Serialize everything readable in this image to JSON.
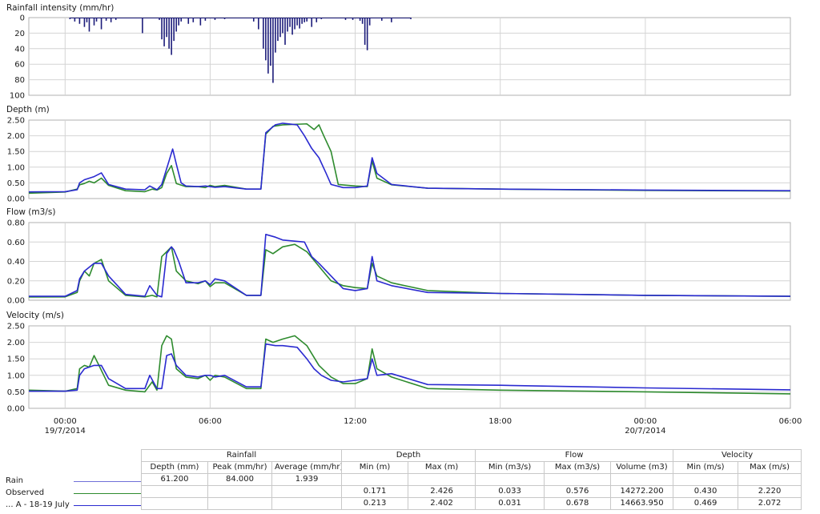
{
  "chart_data": [
    {
      "type": "bar",
      "title": "Rainfall intensity (mm/hr)",
      "ylim": [
        0,
        100
      ],
      "y_ticks": [
        "0",
        "20",
        "40",
        "60",
        "80",
        "100"
      ],
      "y_inverted": true,
      "x_unit": "hours since 19/7/2014 00:00",
      "xlim": [
        -3,
        30
      ],
      "series": [
        {
          "name": "Rain",
          "x": [
            0.2,
            0.4,
            0.6,
            0.8,
            0.9,
            1.0,
            1.2,
            1.3,
            1.5,
            1.7,
            1.9,
            2.1,
            3.2,
            3.9,
            4.0,
            4.1,
            4.2,
            4.3,
            4.4,
            4.5,
            4.6,
            4.7,
            4.8,
            5.1,
            5.3,
            5.6,
            5.8,
            6.2,
            6.6,
            7.8,
            8.0,
            8.2,
            8.3,
            8.4,
            8.5,
            8.6,
            8.7,
            8.8,
            8.9,
            9.0,
            9.1,
            9.2,
            9.3,
            9.4,
            9.5,
            9.6,
            9.7,
            9.8,
            9.9,
            10.0,
            10.2,
            10.4,
            10.6,
            11.6,
            11.9,
            12.2,
            12.3,
            12.4,
            12.5,
            12.6,
            13.1,
            13.5,
            14.3
          ],
          "values": [
            2,
            5,
            8,
            12,
            6,
            18,
            10,
            5,
            15,
            4,
            6,
            3,
            20,
            3,
            28,
            37,
            25,
            40,
            48,
            30,
            18,
            10,
            5,
            8,
            6,
            10,
            4,
            3,
            2,
            5,
            15,
            40,
            55,
            72,
            62,
            84,
            45,
            30,
            25,
            20,
            35,
            18,
            12,
            22,
            15,
            10,
            14,
            8,
            6,
            5,
            12,
            6,
            2,
            3,
            3,
            4,
            8,
            35,
            42,
            10,
            4,
            6,
            2
          ]
        }
      ]
    },
    {
      "type": "line",
      "title": "Depth (m)",
      "ylim": [
        0,
        2.5
      ],
      "y_ticks": [
        "0.00",
        "0.50",
        "1.00",
        "1.50",
        "2.00",
        "2.50"
      ],
      "x_unit": "hours since 19/7/2014 00:00",
      "xlim": [
        -1.5,
        30
      ],
      "series": [
        {
          "name": "Observed",
          "color": "#2e8b2e",
          "x": [
            -1.5,
            0.0,
            0.5,
            0.6,
            0.8,
            1.0,
            1.2,
            1.5,
            1.8,
            2.5,
            3.3,
            3.6,
            3.8,
            4.0,
            4.2,
            4.4,
            4.6,
            5.0,
            5.5,
            5.8,
            6.0,
            6.2,
            6.6,
            7.5,
            8.1,
            8.3,
            8.6,
            9.0,
            10.0,
            10.3,
            10.5,
            10.7,
            11.0,
            11.3,
            12.0,
            12.5,
            12.7,
            12.9,
            13.5,
            15.0,
            18.0,
            24.0,
            30.0
          ],
          "values": [
            0.171,
            0.21,
            0.3,
            0.44,
            0.48,
            0.55,
            0.5,
            0.65,
            0.42,
            0.25,
            0.22,
            0.3,
            0.27,
            0.35,
            0.8,
            1.05,
            0.48,
            0.38,
            0.38,
            0.35,
            0.42,
            0.38,
            0.42,
            0.3,
            0.3,
            2.05,
            2.3,
            2.35,
            2.38,
            2.2,
            2.35,
            2.0,
            1.5,
            0.45,
            0.4,
            0.38,
            1.2,
            0.65,
            0.44,
            0.33,
            0.3,
            0.26,
            0.24
          ]
        },
        {
          "name": "... A - 18-19 July",
          "color": "#2a2ad0",
          "x": [
            -1.5,
            0.0,
            0.5,
            0.6,
            0.8,
            1.2,
            1.5,
            1.8,
            2.5,
            3.3,
            3.5,
            3.8,
            4.0,
            4.3,
            4.45,
            4.6,
            4.8,
            5.0,
            5.5,
            5.8,
            6.0,
            6.2,
            6.6,
            7.5,
            8.1,
            8.3,
            8.7,
            9.0,
            9.6,
            9.9,
            10.2,
            10.5,
            10.8,
            11.0,
            11.5,
            12.0,
            12.5,
            12.7,
            12.9,
            13.5,
            15.0,
            18.0,
            24.0,
            30.0
          ],
          "values": [
            0.213,
            0.22,
            0.28,
            0.5,
            0.6,
            0.7,
            0.82,
            0.45,
            0.3,
            0.28,
            0.4,
            0.28,
            0.45,
            1.2,
            1.58,
            1.1,
            0.5,
            0.4,
            0.38,
            0.4,
            0.38,
            0.36,
            0.38,
            0.3,
            0.3,
            2.1,
            2.35,
            2.4,
            2.35,
            2.0,
            1.6,
            1.3,
            0.8,
            0.45,
            0.35,
            0.35,
            0.4,
            1.3,
            0.8,
            0.45,
            0.33,
            0.3,
            0.27,
            0.25
          ]
        }
      ]
    },
    {
      "type": "line",
      "title": "Flow (m3/s)",
      "ylim": [
        0,
        0.8
      ],
      "y_ticks": [
        "0.00",
        "0.20",
        "0.40",
        "0.60",
        "0.80"
      ],
      "x_unit": "hours since 19/7/2014 00:00",
      "xlim": [
        -1.5,
        30
      ],
      "series": [
        {
          "name": "Observed",
          "color": "#2e8b2e",
          "x": [
            -1.5,
            0.0,
            0.5,
            0.6,
            0.8,
            1.0,
            1.2,
            1.5,
            1.8,
            2.5,
            3.3,
            3.6,
            3.8,
            4.0,
            4.2,
            4.4,
            4.6,
            5.0,
            5.5,
            5.8,
            6.0,
            6.2,
            6.6,
            7.5,
            8.1,
            8.3,
            8.6,
            9.0,
            9.5,
            10.0,
            10.5,
            11.0,
            11.5,
            12.0,
            12.5,
            12.7,
            12.9,
            13.5,
            15.0,
            18.0,
            24.0,
            30.0
          ],
          "values": [
            0.033,
            0.035,
            0.08,
            0.2,
            0.3,
            0.25,
            0.38,
            0.42,
            0.2,
            0.05,
            0.035,
            0.05,
            0.035,
            0.45,
            0.5,
            0.55,
            0.3,
            0.2,
            0.17,
            0.2,
            0.14,
            0.18,
            0.18,
            0.05,
            0.05,
            0.52,
            0.48,
            0.55,
            0.576,
            0.5,
            0.35,
            0.2,
            0.15,
            0.13,
            0.12,
            0.38,
            0.25,
            0.18,
            0.1,
            0.07,
            0.05,
            0.04
          ]
        },
        {
          "name": "... A - 18-19 July",
          "color": "#2a2ad0",
          "x": [
            -1.5,
            0.0,
            0.5,
            0.6,
            0.8,
            1.2,
            1.5,
            1.8,
            2.5,
            3.3,
            3.5,
            3.8,
            4.0,
            4.2,
            4.4,
            4.5,
            4.7,
            5.0,
            5.5,
            5.8,
            6.0,
            6.2,
            6.6,
            7.5,
            8.1,
            8.3,
            8.7,
            9.0,
            9.9,
            10.2,
            10.5,
            11.0,
            11.5,
            12.0,
            12.5,
            12.7,
            12.9,
            13.5,
            15.0,
            18.0,
            24.0,
            30.0
          ],
          "values": [
            0.04,
            0.04,
            0.1,
            0.22,
            0.3,
            0.38,
            0.38,
            0.25,
            0.06,
            0.04,
            0.15,
            0.05,
            0.035,
            0.48,
            0.55,
            0.52,
            0.4,
            0.18,
            0.18,
            0.2,
            0.16,
            0.22,
            0.2,
            0.05,
            0.05,
            0.678,
            0.65,
            0.62,
            0.6,
            0.45,
            0.38,
            0.25,
            0.12,
            0.1,
            0.12,
            0.45,
            0.2,
            0.15,
            0.08,
            0.07,
            0.05,
            0.04
          ]
        }
      ]
    },
    {
      "type": "line",
      "title": "Velocity (m/s)",
      "ylim": [
        0,
        2.5
      ],
      "y_ticks": [
        "0.00",
        "0.50",
        "1.00",
        "1.50",
        "2.00",
        "2.50"
      ],
      "x_unit": "hours since 19/7/2014 00:00",
      "xlim": [
        -1.5,
        30
      ],
      "x_ticks": [
        {
          "label": "00:00",
          "date": "19/7/2014",
          "x": 0
        },
        {
          "label": "06:00",
          "date": "",
          "x": 6
        },
        {
          "label": "12:00",
          "date": "",
          "x": 12
        },
        {
          "label": "18:00",
          "date": "",
          "x": 18
        },
        {
          "label": "00:00",
          "date": "20/7/2014",
          "x": 24
        },
        {
          "label": "06:00",
          "date": "",
          "x": 30
        }
      ],
      "series": [
        {
          "name": "Observed",
          "color": "#2e8b2e",
          "x": [
            -1.5,
            0.0,
            0.5,
            0.6,
            0.8,
            1.0,
            1.2,
            1.4,
            1.8,
            2.5,
            3.3,
            3.6,
            3.8,
            4.0,
            4.2,
            4.4,
            4.6,
            5.0,
            5.5,
            5.8,
            6.0,
            6.2,
            6.6,
            7.5,
            8.1,
            8.3,
            8.6,
            9.0,
            9.5,
            10.0,
            10.5,
            11.0,
            11.5,
            12.0,
            12.5,
            12.7,
            12.9,
            13.5,
            15.0,
            18.0,
            24.0,
            30.0
          ],
          "values": [
            0.55,
            0.52,
            0.6,
            1.2,
            1.3,
            1.25,
            1.6,
            1.3,
            0.7,
            0.55,
            0.5,
            0.8,
            0.55,
            1.9,
            2.2,
            2.1,
            1.2,
            0.95,
            0.9,
            1.0,
            0.85,
            1.0,
            0.95,
            0.6,
            0.6,
            2.1,
            2.0,
            2.1,
            2.2,
            1.9,
            1.3,
            0.95,
            0.75,
            0.75,
            0.9,
            1.8,
            1.2,
            0.95,
            0.6,
            0.55,
            0.5,
            0.44
          ]
        },
        {
          "name": "... A - 18-19 July",
          "color": "#2a2ad0",
          "x": [
            -1.5,
            0.0,
            0.5,
            0.6,
            0.8,
            1.2,
            1.5,
            1.8,
            2.5,
            3.3,
            3.5,
            3.8,
            4.0,
            4.2,
            4.4,
            4.6,
            5.0,
            5.5,
            5.8,
            6.0,
            6.2,
            6.6,
            7.5,
            8.1,
            8.3,
            8.7,
            9.0,
            9.6,
            10.0,
            10.3,
            10.6,
            11.0,
            11.5,
            12.0,
            12.5,
            12.7,
            12.9,
            13.5,
            15.0,
            18.0,
            24.0,
            30.0
          ],
          "values": [
            0.52,
            0.52,
            0.55,
            1.0,
            1.2,
            1.3,
            1.3,
            0.9,
            0.6,
            0.6,
            1.0,
            0.6,
            0.6,
            1.6,
            1.65,
            1.3,
            1.0,
            0.95,
            1.0,
            1.0,
            0.95,
            1.0,
            0.65,
            0.65,
            1.95,
            1.9,
            1.9,
            1.85,
            1.5,
            1.2,
            1.0,
            0.85,
            0.8,
            0.85,
            0.9,
            1.5,
            1.0,
            1.05,
            0.72,
            0.7,
            0.62,
            0.56
          ]
        }
      ]
    }
  ],
  "summary": {
    "groups": [
      "Rainfall",
      "Depth",
      "Flow",
      "Velocity"
    ],
    "headers": [
      "Depth (mm)",
      "Peak (mm/hr)",
      "Average (mm/hr)",
      "Min (m)",
      "Max (m)",
      "Min (m3/s)",
      "Max (m3/s)",
      "Volume (m3)",
      "Min (m/s)",
      "Max (m/s)"
    ],
    "rows": [
      {
        "label": "Rain",
        "color": "#7070d8",
        "values": [
          "61.200",
          "84.000",
          "1.939",
          "",
          "",
          "",
          "",
          "",
          "",
          ""
        ]
      },
      {
        "label": "Observed",
        "color": "#2e8b2e",
        "values": [
          "",
          "",
          "",
          "0.171",
          "2.426",
          "0.033",
          "0.576",
          "14272.200",
          "0.430",
          "2.220"
        ]
      },
      {
        "label": "... A - 18-19 July",
        "color": "#2a2ad0",
        "values": [
          "",
          "",
          "",
          "0.213",
          "2.402",
          "0.031",
          "0.678",
          "14663.950",
          "0.469",
          "2.072"
        ]
      }
    ]
  }
}
